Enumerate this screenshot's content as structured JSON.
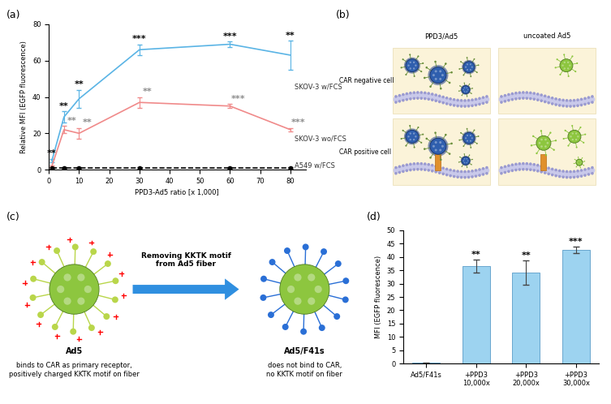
{
  "chart_data": [
    {
      "type": "line",
      "title": "(a)",
      "x_label": "PPD3-Ad5 ratio [x 1,000]",
      "y_label": "Relative MFI (EGFP fluorescence)",
      "x": [
        1,
        5,
        10,
        30,
        60,
        80
      ],
      "xlim": [
        0,
        85
      ],
      "xticks": [
        0,
        10,
        20,
        30,
        40,
        50,
        60,
        70,
        80
      ],
      "ylim": [
        0,
        80
      ],
      "yticks": [
        0,
        20,
        40,
        60,
        80
      ],
      "series": [
        {
          "name": "SKOV-3 w/FCS",
          "color": "#5ab4e5",
          "marker": "none",
          "line_style": "solid",
          "values": [
            5,
            29,
            39,
            66,
            69,
            63
          ],
          "errors": [
            1,
            3,
            5,
            3,
            1.5,
            8
          ],
          "significance": [
            "**",
            "**",
            "**",
            "***",
            "***",
            "**"
          ]
        },
        {
          "name": "SKOV-3 wo/FCS",
          "color": "#f08a8a",
          "marker": "none",
          "line_style": "solid",
          "values": [
            2,
            22,
            20,
            37,
            35,
            22
          ],
          "errors": [
            0.5,
            2,
            3,
            3,
            1,
            1
          ],
          "significance": [
            null,
            "**",
            "**",
            "**",
            "***",
            "***"
          ]
        },
        {
          "name": "A549 w/FCS",
          "color": "#000000",
          "marker": "o",
          "line_style": "dashed",
          "values": [
            1,
            1,
            1,
            1,
            1,
            1
          ],
          "errors": [
            0.3,
            0.3,
            0.3,
            0.3,
            0.3,
            0.3
          ],
          "significance": [
            null,
            null,
            null,
            null,
            null,
            null
          ]
        }
      ]
    },
    {
      "type": "bar",
      "title": "(d)",
      "y_label": "MFI (EGFP fluorescence)",
      "categories": [
        "Ad5/F41s",
        "+PPD3\n10,000x",
        "+PPD3\n20,000x",
        "+PPD3\n30,000x"
      ],
      "values": [
        0.3,
        36.5,
        34.2,
        42.7
      ],
      "errors": [
        0.1,
        2.5,
        4.5,
        1.2
      ],
      "significance": [
        null,
        "**",
        "**",
        "***"
      ],
      "color": "#9dd3f0",
      "ylim": [
        0,
        50
      ],
      "yticks": [
        0,
        5,
        10,
        15,
        20,
        25,
        30,
        35,
        40,
        45,
        50
      ]
    }
  ],
  "diagrams": [
    {
      "title": "(b)",
      "columns": [
        "PPD3/Ad5",
        "uncoated Ad5"
      ],
      "rows": [
        "CAR negative cell",
        "CAR positive cell"
      ]
    },
    {
      "title": "(c)",
      "arrow_text": "Removing KKTK motif\nfrom Ad5 fiber",
      "left": {
        "name": "Ad5",
        "text": "binds to CAR as primary receptor,\npositively charged KKTK motif on fiber"
      },
      "right": {
        "name": "Ad5/F41s",
        "text": "does not bind to CAR,\nno KKTK motif on fiber"
      }
    }
  ]
}
